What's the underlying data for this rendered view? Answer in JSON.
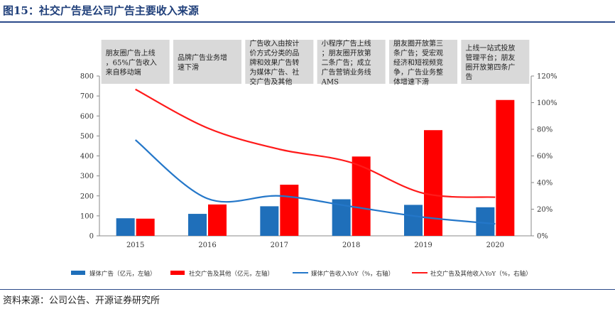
{
  "figure": {
    "title": "图15：社交广告是公司广告主要收入来源",
    "source": "资料来源：公司公告、开源证券研究所"
  },
  "annotations": [
    "朋友圈广告上线，65%广告收入来自移动端",
    "品牌广告业务增速下滑",
    "广告收入由按计价方式分类的品牌和效果广告转为媒体广告、社交广告及其他",
    "小程序广告上线；朋友圈开放第二条广告；成立广告营销业务线AMS",
    "朋友圈开放第三条广告；受宏观经济和短视频竞争，广告业务整体增速下滑",
    "上线一站式投放管理平台；朋友圈开放第四条广告"
  ],
  "colors": {
    "media_bar": "#1f6fba",
    "social_bar": "#ff0000",
    "media_line": "#2477c9",
    "social_line": "#ff1a1a",
    "annotation_bg": "#d9d9d9",
    "title": "#1f3f7a"
  },
  "chart_data": {
    "type": "bar",
    "categories": [
      "2015",
      "2016",
      "2017",
      "2018",
      "2019",
      "2020"
    ],
    "y_left": {
      "ylim": [
        0,
        800
      ],
      "ticks": [
        "0",
        "100",
        "200",
        "300",
        "400",
        "500",
        "600",
        "700",
        "800"
      ]
    },
    "y_right": {
      "ylim": [
        0,
        120
      ],
      "ticks": [
        "0%",
        "20%",
        "40%",
        "60%",
        "80%",
        "100%",
        "120%"
      ]
    },
    "series": [
      {
        "name": "媒体广告（亿元，左轴）",
        "type": "bar",
        "axis": "left",
        "values": [
          88,
          110,
          148,
          183,
          155,
          143
        ]
      },
      {
        "name": "社交广告及其他（亿元，左轴）",
        "type": "bar",
        "axis": "left",
        "values": [
          86,
          157,
          256,
          397,
          529,
          680
        ]
      },
      {
        "name": "媒体广告收入YoY（%，右轴）",
        "type": "line",
        "axis": "right",
        "values": [
          72,
          28,
          30,
          22,
          14,
          9
        ]
      },
      {
        "name": "社交广告及其他收入YoY（%，右轴）",
        "type": "line",
        "axis": "right",
        "values": [
          110,
          81,
          65,
          55,
          32,
          29
        ]
      }
    ],
    "legend_position": "bottom",
    "grid": false
  }
}
